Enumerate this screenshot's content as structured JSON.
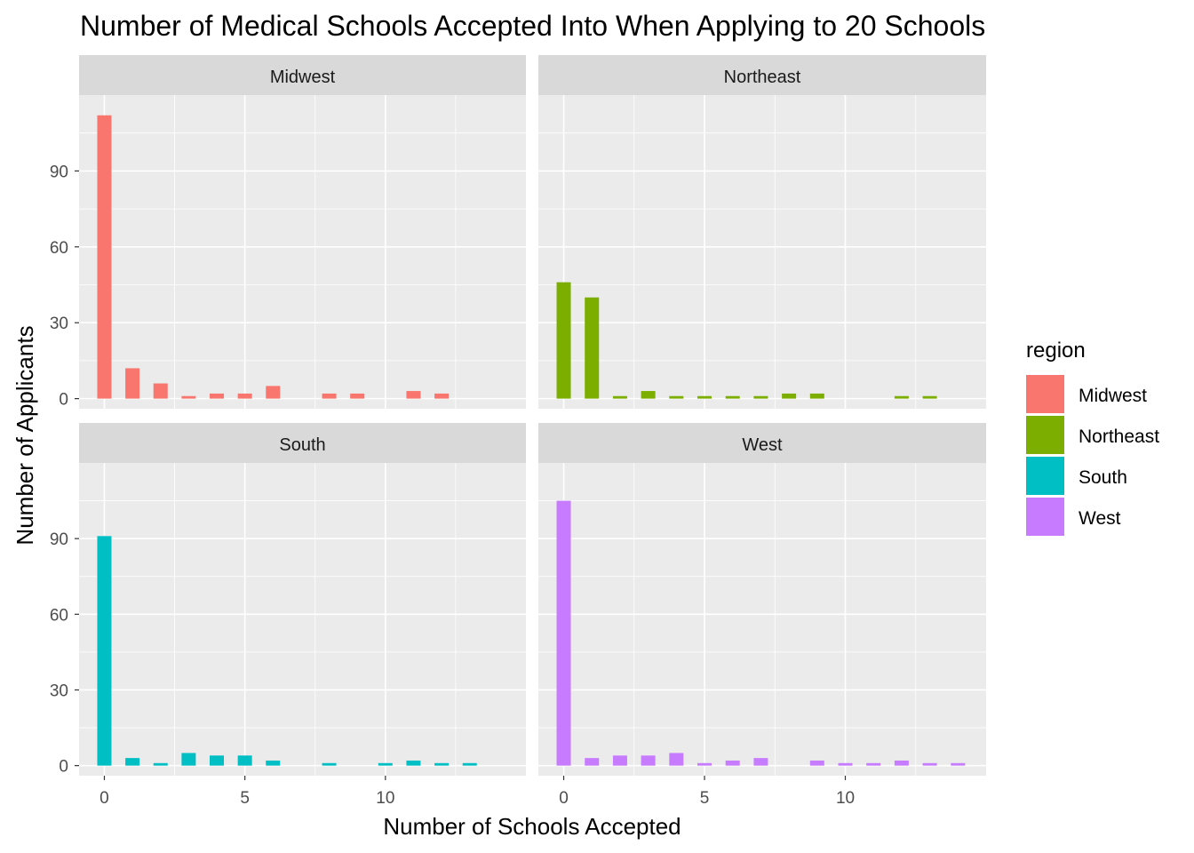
{
  "chart_data": {
    "type": "bar",
    "title": "Number of Medical Schools Accepted Into When Applying to 20 Schools",
    "xlabel": "Number of Schools Accepted",
    "ylabel": "Number of Applicants",
    "xlim": [
      -0.9,
      15.0
    ],
    "ylim": [
      -4,
      120
    ],
    "x_ticks": [
      0,
      5,
      10
    ],
    "y_ticks": [
      0,
      30,
      60,
      90
    ],
    "grid": true,
    "legend": {
      "title": "region",
      "position": "right"
    },
    "panel_background": "#ebebeb",
    "strip_background": "#d9d9d9",
    "series": [
      {
        "name": "Midwest",
        "color": "#f8766d",
        "x": [
          0,
          1,
          2,
          3,
          4,
          5,
          6,
          8,
          9,
          11,
          12
        ],
        "values": [
          112,
          12,
          6,
          1,
          2,
          2,
          5,
          2,
          2,
          3,
          2
        ]
      },
      {
        "name": "Northeast",
        "color": "#7cae00",
        "x": [
          0,
          1,
          2,
          3,
          4,
          5,
          6,
          7,
          8,
          9,
          12,
          13
        ],
        "values": [
          46,
          40,
          1,
          3,
          1,
          1,
          1,
          1,
          2,
          2,
          1,
          1
        ]
      },
      {
        "name": "South",
        "color": "#00bfc4",
        "x": [
          0,
          1,
          2,
          3,
          4,
          5,
          6,
          8,
          10,
          11,
          12,
          13
        ],
        "values": [
          91,
          3,
          1,
          5,
          4,
          4,
          2,
          1,
          1,
          2,
          1,
          1
        ]
      },
      {
        "name": "West",
        "color": "#c77cff",
        "x": [
          0,
          1,
          2,
          3,
          4,
          5,
          6,
          7,
          9,
          10,
          11,
          12,
          13,
          14
        ],
        "values": [
          105,
          3,
          4,
          4,
          5,
          1,
          2,
          3,
          2,
          1,
          1,
          2,
          1,
          1
        ]
      }
    ]
  }
}
